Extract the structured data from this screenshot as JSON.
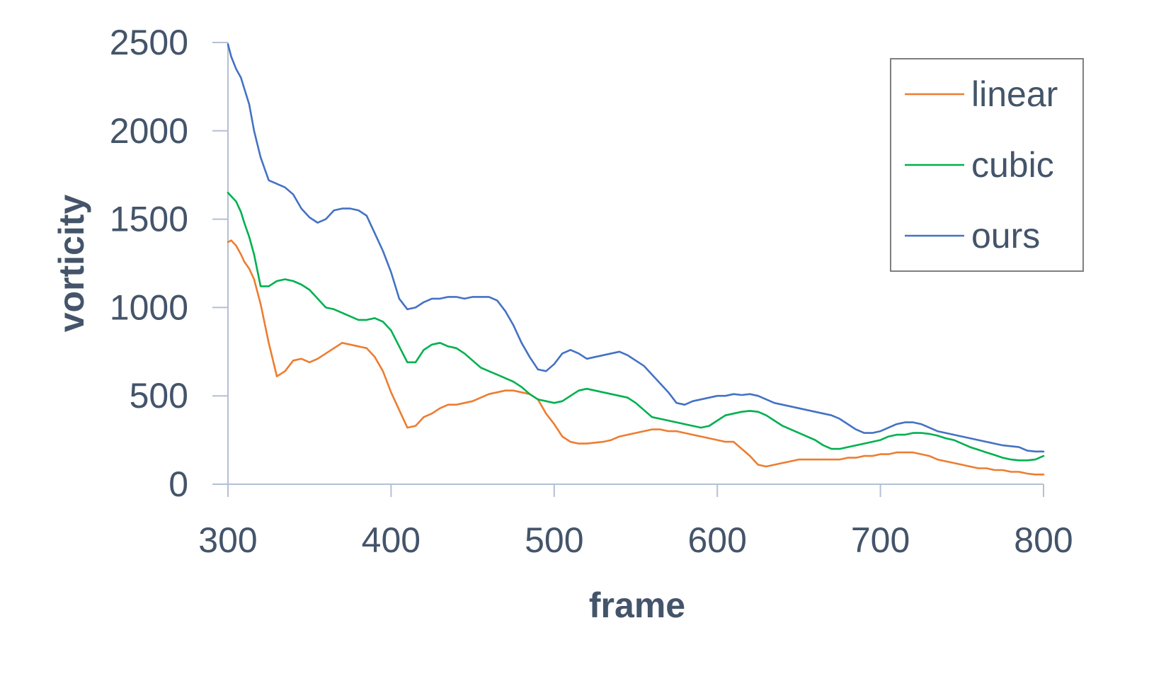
{
  "chart_data": {
    "type": "line",
    "title": "",
    "xlabel": "frame",
    "ylabel": "vorticity",
    "xlim": [
      300,
      800
    ],
    "ylim": [
      0,
      2500
    ],
    "xticks": [
      300,
      400,
      500,
      600,
      700,
      800
    ],
    "yticks": [
      0,
      500,
      1000,
      1500,
      2000,
      2500
    ],
    "grid": false,
    "legend_position": "top-right",
    "x": [
      300,
      302,
      305,
      308,
      310,
      313,
      316,
      320,
      325,
      330,
      335,
      340,
      345,
      350,
      355,
      360,
      365,
      370,
      375,
      380,
      385,
      390,
      395,
      400,
      405,
      410,
      415,
      420,
      425,
      430,
      435,
      440,
      445,
      450,
      455,
      460,
      465,
      470,
      475,
      480,
      485,
      490,
      495,
      500,
      505,
      510,
      515,
      520,
      525,
      530,
      535,
      540,
      545,
      550,
      555,
      560,
      565,
      570,
      575,
      580,
      585,
      590,
      595,
      600,
      605,
      610,
      615,
      620,
      625,
      630,
      635,
      640,
      645,
      650,
      655,
      660,
      665,
      670,
      675,
      680,
      685,
      690,
      695,
      700,
      705,
      710,
      715,
      720,
      725,
      730,
      735,
      740,
      745,
      750,
      755,
      760,
      765,
      770,
      775,
      780,
      785,
      790,
      795,
      800
    ],
    "series": [
      {
        "name": "linear",
        "color": "#ed7d31",
        "values": [
          1370,
          1380,
          1350,
          1300,
          1260,
          1220,
          1160,
          1020,
          800,
          610,
          640,
          700,
          710,
          690,
          710,
          740,
          770,
          800,
          790,
          780,
          770,
          720,
          640,
          520,
          420,
          320,
          330,
          380,
          400,
          430,
          450,
          450,
          460,
          470,
          490,
          510,
          520,
          530,
          530,
          520,
          510,
          480,
          400,
          340,
          270,
          240,
          230,
          230,
          235,
          240,
          250,
          270,
          280,
          290,
          300,
          310,
          310,
          300,
          300,
          290,
          280,
          270,
          260,
          250,
          240,
          240,
          200,
          160,
          110,
          100,
          110,
          120,
          130,
          140,
          140,
          140,
          140,
          140,
          140,
          150,
          150,
          160,
          160,
          170,
          170,
          180,
          180,
          180,
          170,
          160,
          140,
          130,
          120,
          110,
          100,
          90,
          90,
          80,
          80,
          70,
          70,
          60,
          55,
          55
        ]
      },
      {
        "name": "cubic",
        "color": "#00b050",
        "values": [
          1650,
          1630,
          1600,
          1540,
          1480,
          1400,
          1300,
          1120,
          1120,
          1150,
          1160,
          1150,
          1130,
          1100,
          1050,
          1000,
          990,
          970,
          950,
          930,
          930,
          940,
          920,
          870,
          780,
          690,
          690,
          760,
          790,
          800,
          780,
          770,
          740,
          700,
          660,
          640,
          620,
          600,
          580,
          550,
          510,
          480,
          470,
          460,
          470,
          500,
          530,
          540,
          530,
          520,
          510,
          500,
          490,
          460,
          420,
          380,
          370,
          360,
          350,
          340,
          330,
          320,
          330,
          360,
          390,
          400,
          410,
          415,
          410,
          390,
          360,
          330,
          310,
          290,
          270,
          250,
          220,
          200,
          200,
          210,
          220,
          230,
          240,
          250,
          270,
          280,
          280,
          290,
          290,
          285,
          275,
          260,
          250,
          230,
          210,
          195,
          180,
          165,
          150,
          140,
          135,
          135,
          140,
          160
        ]
      },
      {
        "name": "ours",
        "color": "#4472c4",
        "values": [
          2490,
          2420,
          2350,
          2300,
          2240,
          2150,
          2000,
          1850,
          1720,
          1700,
          1680,
          1640,
          1560,
          1510,
          1480,
          1500,
          1550,
          1560,
          1560,
          1550,
          1520,
          1420,
          1320,
          1200,
          1050,
          990,
          1000,
          1030,
          1050,
          1050,
          1060,
          1060,
          1050,
          1060,
          1060,
          1060,
          1040,
          980,
          900,
          800,
          720,
          650,
          640,
          680,
          740,
          760,
          740,
          710,
          720,
          730,
          740,
          750,
          730,
          700,
          670,
          620,
          570,
          520,
          460,
          450,
          470,
          480,
          490,
          500,
          500,
          510,
          505,
          510,
          500,
          480,
          460,
          450,
          440,
          430,
          420,
          410,
          400,
          390,
          370,
          340,
          310,
          290,
          290,
          300,
          320,
          340,
          350,
          350,
          340,
          320,
          300,
          290,
          280,
          270,
          260,
          250,
          240,
          230,
          220,
          215,
          210,
          190,
          185,
          185
        ]
      }
    ]
  }
}
